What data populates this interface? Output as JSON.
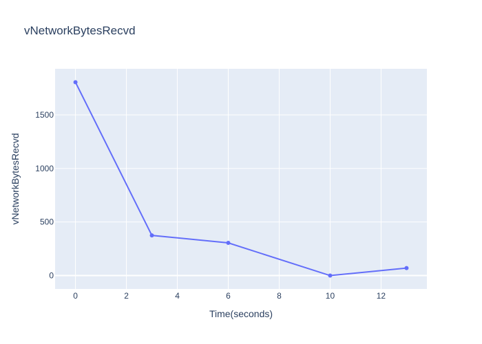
{
  "chart_data": {
    "type": "line",
    "title": "vNetworkBytesRecvd",
    "xlabel": "Time(seconds)",
    "ylabel": "vNetworkBytesRecvd",
    "x": [
      0,
      3,
      6,
      10,
      13
    ],
    "series": [
      {
        "values": [
          1805,
          375,
          305,
          0,
          70
        ]
      }
    ],
    "xlim": [
      -0.8,
      13.8
    ],
    "ylim": [
      -125,
      1930
    ],
    "xticks": [
      0,
      2,
      4,
      6,
      8,
      10,
      12
    ],
    "xtick_labels": [
      "0",
      "2",
      "4",
      "6",
      "8",
      "10",
      "12"
    ],
    "yticks": [
      0,
      500,
      1000,
      1500
    ],
    "ytick_labels": [
      "0",
      "500",
      "1000",
      "1500"
    ],
    "grid": true,
    "legend": "none",
    "mode": "lines+markers",
    "colors": {
      "line": "#636efa",
      "plot_background": "#e5ecf6",
      "grid": "#ffffff",
      "text": "#2a3f5f"
    }
  }
}
